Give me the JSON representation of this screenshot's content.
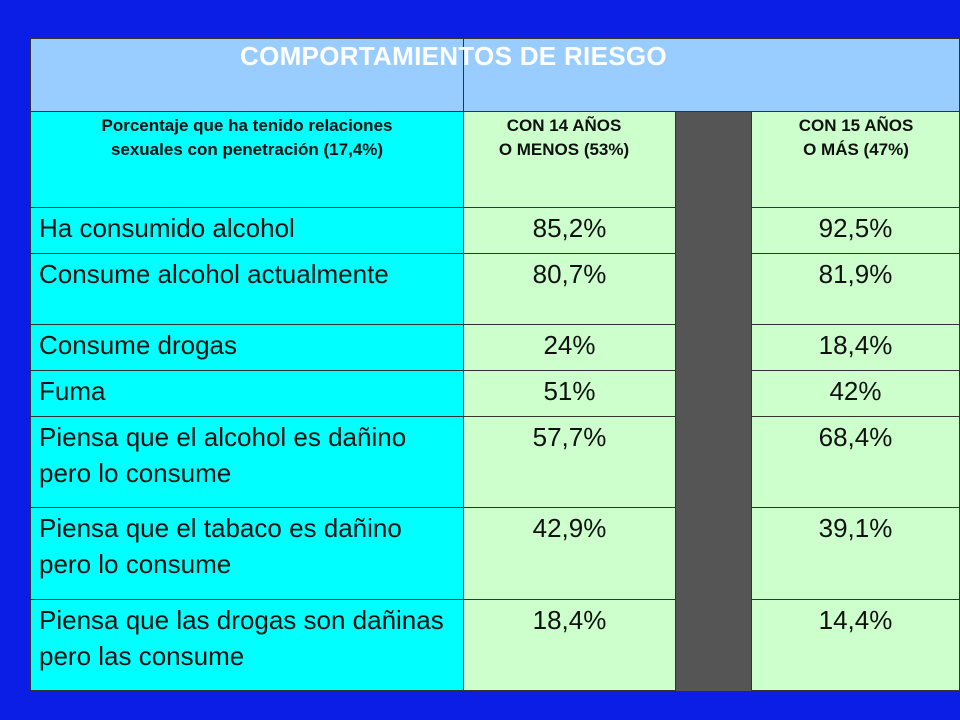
{
  "title": "COMPORTAMIENTOS  DE RIESGO",
  "header": {
    "row_label": "Porcentaje que ha tenido relaciones\nsexuales con penetración (17,4%)",
    "col1": "CON 14 AÑOS\nO MENOS (53%)",
    "col2": "CON 15 AÑOS\nO MÁS (47%)"
  },
  "rows": [
    {
      "label": "Ha consumido alcohol",
      "v1": "85,2%",
      "v2": "92,5%"
    },
    {
      "label": "Consume alcohol actualmente",
      "v1": "80,7%",
      "v2": "81,9%"
    },
    {
      "label": "Consume drogas",
      "v1": "24%",
      "v2": "18,4%"
    },
    {
      "label": "Fuma",
      "v1": "51%",
      "v2": "42%"
    },
    {
      "label": "Piensa que el alcohol es dañino pero lo consume",
      "v1": "57,7%",
      "v2": "68,4%"
    },
    {
      "label": "Piensa que el tabaco es dañino pero lo consume",
      "v1": "42,9%",
      "v2": "39,1%"
    },
    {
      "label": "Piensa que las drogas son dañinas pero las consume",
      "v1": "18,4%",
      "v2": "14,4%"
    }
  ],
  "colors": {
    "background": "#0a1ee6",
    "title_fill": "#99ccff",
    "label_fill": "#00ffff",
    "value_fill": "#ccffcc",
    "gap_fill": "#555555"
  }
}
